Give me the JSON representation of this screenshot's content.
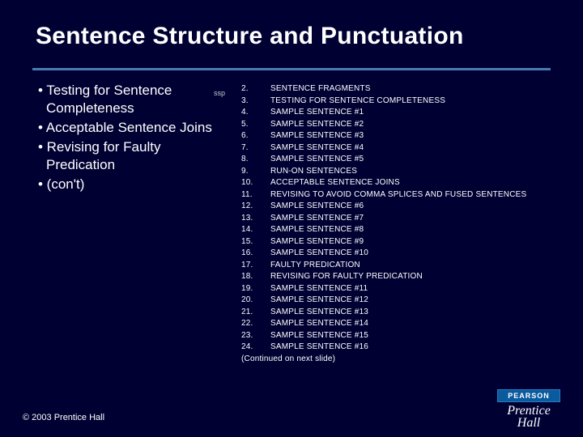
{
  "title": "Sentence Structure and Punctuation",
  "ssp_label": "ssp",
  "bullets": [
    "• Testing for Sentence Completeness",
    "• Acceptable Sentence Joins",
    "• Revising for Faulty Predication",
    "• (con't)"
  ],
  "outline": [
    {
      "num": "2.",
      "text": "SENTENCE FRAGMENTS"
    },
    {
      "num": "3.",
      "text": "TESTING FOR SENTENCE COMPLETENESS"
    },
    {
      "num": "4.",
      "text": "SAMPLE SENTENCE #1"
    },
    {
      "num": "5.",
      "text": "SAMPLE SENTENCE #2"
    },
    {
      "num": "6.",
      "text": "SAMPLE SENTENCE #3"
    },
    {
      "num": "7.",
      "text": "SAMPLE SENTENCE #4"
    },
    {
      "num": "8.",
      "text": "SAMPLE SENTENCE #5"
    },
    {
      "num": "9.",
      "text": "RUN-ON SENTENCES"
    },
    {
      "num": "10.",
      "text": "ACCEPTABLE SENTENCE JOINS"
    },
    {
      "num": "11.",
      "text": "REVISING TO AVOID COMMA SPLICES AND FUSED SENTENCES"
    },
    {
      "num": "12.",
      "text": "SAMPLE SENTENCE #6"
    },
    {
      "num": "13.",
      "text": "SAMPLE SENTENCE #7"
    },
    {
      "num": "14.",
      "text": "SAMPLE SENTENCE #8"
    },
    {
      "num": "15.",
      "text": "SAMPLE SENTENCE #9"
    },
    {
      "num": "16.",
      "text": "SAMPLE SENTENCE #10"
    },
    {
      "num": "17.",
      "text": "FAULTY PREDICATION"
    },
    {
      "num": "18.",
      "text": "REVISING FOR FAULTY PREDICATION"
    },
    {
      "num": "19.",
      "text": "SAMPLE SENTENCE #11"
    },
    {
      "num": "20.",
      "text": "SAMPLE SENTENCE #12"
    },
    {
      "num": "21.",
      "text": "SAMPLE SENTENCE #13"
    },
    {
      "num": "22.",
      "text": "SAMPLE SENTENCE #14"
    },
    {
      "num": "23.",
      "text": "SAMPLE SENTENCE #15"
    },
    {
      "num": "24.",
      "text": "SAMPLE SENTENCE #16"
    }
  ],
  "continued": "(Continued on next slide)",
  "copyright": "© 2003 Prentice Hall",
  "logo": {
    "top": "PEARSON",
    "line1": "Prentice",
    "line2": "Hall"
  },
  "colors": {
    "background": "#000033",
    "text": "#ffffff",
    "rule": "#4a7ab0",
    "logo_bg": "#0a5a9e"
  }
}
